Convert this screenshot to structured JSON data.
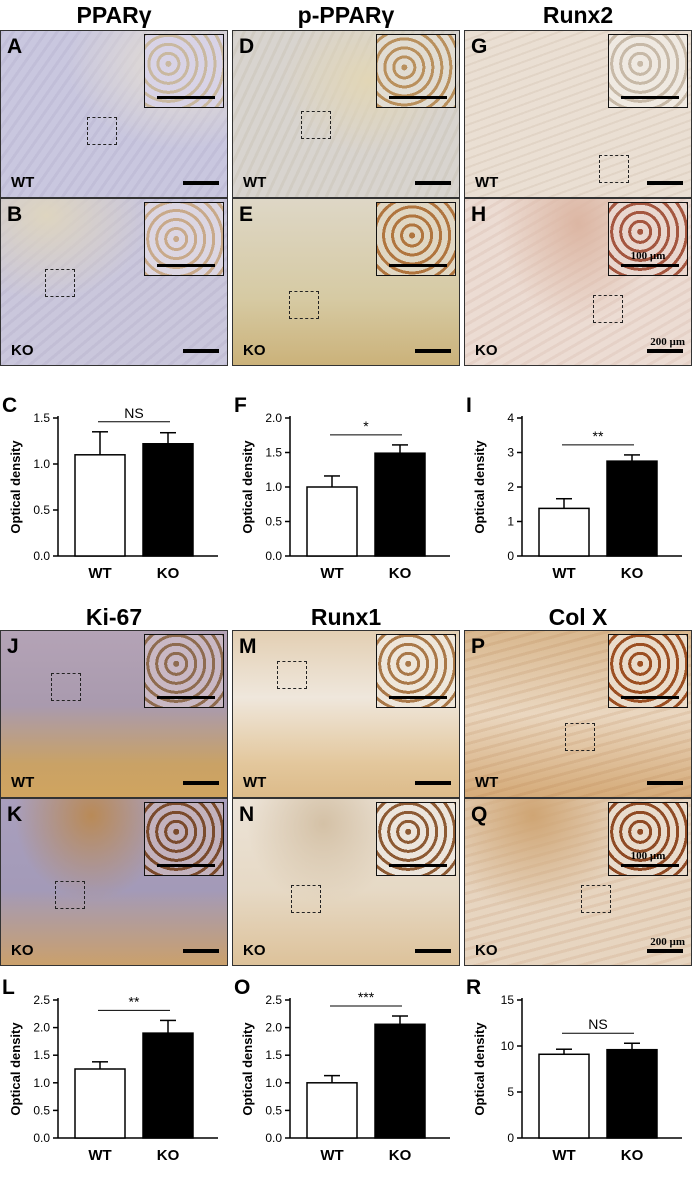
{
  "figure": {
    "headers_top": [
      "PPARγ",
      "p-PPARγ",
      "Runx2"
    ],
    "headers_bottom": [
      "Ki-67",
      "Runx1",
      "Col X"
    ],
    "panels": [
      {
        "label": "A",
        "group": "WT"
      },
      {
        "label": "B",
        "group": "KO"
      },
      {
        "label": "D",
        "group": "WT"
      },
      {
        "label": "E",
        "group": "KO"
      },
      {
        "label": "G",
        "group": "WT"
      },
      {
        "label": "H",
        "group": "KO",
        "inset_scale": "100 µm",
        "scale": "200 µm"
      },
      {
        "label": "J",
        "group": "WT"
      },
      {
        "label": "K",
        "group": "KO"
      },
      {
        "label": "M",
        "group": "WT"
      },
      {
        "label": "N",
        "group": "KO"
      },
      {
        "label": "P",
        "group": "WT"
      },
      {
        "label": "Q",
        "group": "KO",
        "inset_scale": "100 µm",
        "scale": "200 µm"
      }
    ],
    "colors": {
      "ppar_bg": "#c9c7df",
      "pppar_bg": "#d9d0b6",
      "runx2_bg": "#ead9cf",
      "ki67_bg": "#b8a2a8",
      "runx1_bg": "#ead8bd",
      "colx_bg": "#e1c29d",
      "wt_bar": "#ffffff",
      "ko_bar": "#000000"
    }
  },
  "chart_data": [
    {
      "label": "C",
      "type": "bar",
      "categories": [
        "WT",
        "KO"
      ],
      "values": [
        1.1,
        1.22
      ],
      "errors": [
        0.25,
        0.12
      ],
      "ylabel": "Optical density",
      "ylim": [
        0,
        1.5
      ],
      "yticks": [
        "0.0",
        "0.5",
        "1.0",
        "1.5"
      ],
      "significance": "NS"
    },
    {
      "label": "F",
      "type": "bar",
      "categories": [
        "WT",
        "KO"
      ],
      "values": [
        1.0,
        1.49
      ],
      "errors": [
        0.16,
        0.12
      ],
      "ylabel": "Optical density",
      "ylim": [
        0,
        2.0
      ],
      "yticks": [
        "0.0",
        "0.5",
        "1.0",
        "1.5",
        "2.0"
      ],
      "significance": "*"
    },
    {
      "label": "I",
      "type": "bar",
      "categories": [
        "WT",
        "KO"
      ],
      "values": [
        1.38,
        2.75
      ],
      "errors": [
        0.28,
        0.18
      ],
      "ylabel": "Optical density",
      "ylim": [
        0,
        4
      ],
      "yticks": [
        "0",
        "1",
        "2",
        "3",
        "4"
      ],
      "significance": "**"
    },
    {
      "label": "L",
      "type": "bar",
      "categories": [
        "WT",
        "KO"
      ],
      "values": [
        1.25,
        1.9
      ],
      "errors": [
        0.13,
        0.23
      ],
      "ylabel": "Optical density",
      "ylim": [
        0,
        2.5
      ],
      "yticks": [
        "0.0",
        "0.5",
        "1.0",
        "1.5",
        "2.0",
        "2.5"
      ],
      "significance": "**"
    },
    {
      "label": "O",
      "type": "bar",
      "categories": [
        "WT",
        "KO"
      ],
      "values": [
        1.0,
        2.06
      ],
      "errors": [
        0.13,
        0.15
      ],
      "ylabel": "Optical density",
      "ylim": [
        0,
        2.5
      ],
      "yticks": [
        "0.0",
        "0.5",
        "1.0",
        "1.5",
        "2.0",
        "2.5"
      ],
      "significance": "***"
    },
    {
      "label": "R",
      "type": "bar",
      "categories": [
        "WT",
        "KO"
      ],
      "values": [
        9.1,
        9.6
      ],
      "errors": [
        0.55,
        0.7
      ],
      "ylabel": "Optical density",
      "ylim": [
        0,
        15
      ],
      "yticks": [
        "0",
        "5",
        "10",
        "15"
      ],
      "significance": "NS"
    }
  ]
}
